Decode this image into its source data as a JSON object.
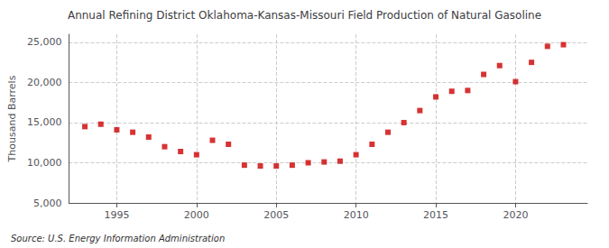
{
  "chart_data": {
    "type": "scatter",
    "title": "Annual Refining District Oklahoma-Kansas-Missouri Field Production of Natural Gasoline",
    "ylabel": "Thousand Barrels",
    "annotation": "Source: U.S. Energy Information Administration",
    "x": [
      1993,
      1994,
      1995,
      1996,
      1997,
      1998,
      1999,
      2000,
      2001,
      2002,
      2003,
      2004,
      2005,
      2006,
      2007,
      2008,
      2009,
      2010,
      2011,
      2012,
      2013,
      2014,
      2015,
      2016,
      2017,
      2018,
      2019,
      2020,
      2021,
      2022,
      2023
    ],
    "values": [
      14500,
      14800,
      14100,
      13800,
      13200,
      12000,
      11400,
      11000,
      12800,
      12300,
      9700,
      9600,
      9600,
      9700,
      10000,
      10100,
      10200,
      11000,
      12300,
      13800,
      15000,
      16500,
      18200,
      18900,
      19000,
      21000,
      22100,
      20100,
      22500,
      24500,
      24700
    ],
    "color": "#cc0000",
    "marker": "square",
    "xlim": [
      1992,
      2024.5
    ],
    "ylim": [
      5000,
      26000
    ],
    "xticks": [
      1995,
      2000,
      2005,
      2010,
      2015,
      2020
    ],
    "yticks": [
      {
        "value": 5000,
        "label": "5,000"
      },
      {
        "value": 10000,
        "label": "10,000"
      },
      {
        "value": 15000,
        "label": "15,000"
      },
      {
        "value": 20000,
        "label": "20,000"
      },
      {
        "value": 25000,
        "label": "25,000"
      }
    ],
    "grid": true
  }
}
